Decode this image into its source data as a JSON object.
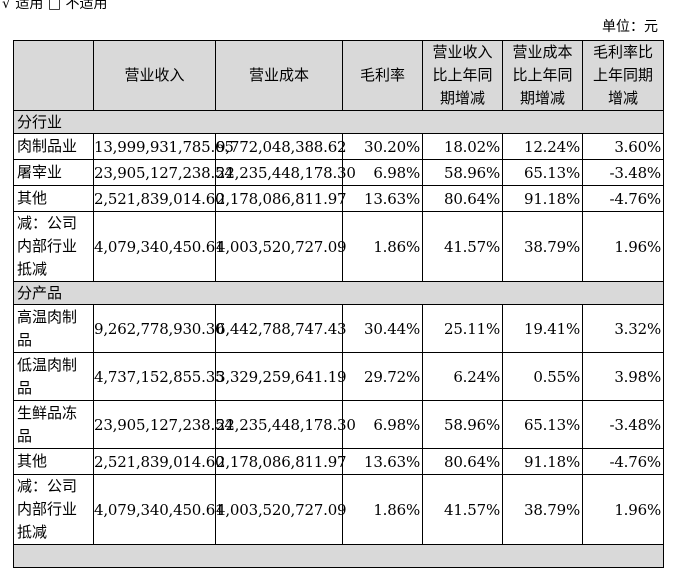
{
  "top_line": "√ 适用 □ 不适用",
  "unit": "单位：元",
  "headers": [
    "",
    "营业收入",
    "营业成本",
    "毛利率",
    "营业收入比上年同期增减",
    "营业成本比上年同期增减",
    "毛利率比上年同期增减"
  ],
  "section_industry": "分行业",
  "industry_rows": [
    {
      "name": "肉制品业",
      "revenue": "13,999,931,785.65",
      "cost": "9,772,048,388.62",
      "margin": "30.20%",
      "rev_chg": "18.02%",
      "cost_chg": "12.24%",
      "margin_chg": "3.60%"
    },
    {
      "name": "屠宰业",
      "revenue": "23,905,127,238.54",
      "cost": "22,235,448,178.30",
      "margin": "6.98%",
      "rev_chg": "58.96%",
      "cost_chg": "65.13%",
      "margin_chg": "-3.48%"
    },
    {
      "name": "其他",
      "revenue": "2,521,839,014.60",
      "cost": "2,178,086,811.97",
      "margin": "13.63%",
      "rev_chg": "80.64%",
      "cost_chg": "91.18%",
      "margin_chg": "-4.76%"
    },
    {
      "name": "减：公司内部行业抵减",
      "revenue": "4,079,340,450.61",
      "cost": "4,003,520,727.09",
      "margin": "1.86%",
      "rev_chg": "41.57%",
      "cost_chg": "38.79%",
      "margin_chg": "1.96%"
    }
  ],
  "section_product": "分产品",
  "product_rows": [
    {
      "name": "高温肉制品",
      "revenue": "9,262,778,930.30",
      "cost": "6,442,788,747.43",
      "margin": "30.44%",
      "rev_chg": "25.11%",
      "cost_chg": "19.41%",
      "margin_chg": "3.32%"
    },
    {
      "name": "低温肉制品",
      "revenue": "4,737,152,855.35",
      "cost": "3,329,259,641.19",
      "margin": "29.72%",
      "rev_chg": "6.24%",
      "cost_chg": "0.55%",
      "margin_chg": "3.98%"
    },
    {
      "name": "生鲜品冻品",
      "revenue": "23,905,127,238.54",
      "cost": "22,235,448,178.30",
      "margin": "6.98%",
      "rev_chg": "58.96%",
      "cost_chg": "65.13%",
      "margin_chg": "-3.48%"
    },
    {
      "name": "其他",
      "revenue": "2,521,839,014.60",
      "cost": "2,178,086,811.97",
      "margin": "13.63%",
      "rev_chg": "80.64%",
      "cost_chg": "91.18%",
      "margin_chg": "-4.76%"
    },
    {
      "name": "减：公司内部行业抵减",
      "revenue": "4,079,340,450.61",
      "cost": "4,003,520,727.09",
      "margin": "1.86%",
      "rev_chg": "41.57%",
      "cost_chg": "38.79%",
      "margin_chg": "1.96%"
    }
  ]
}
